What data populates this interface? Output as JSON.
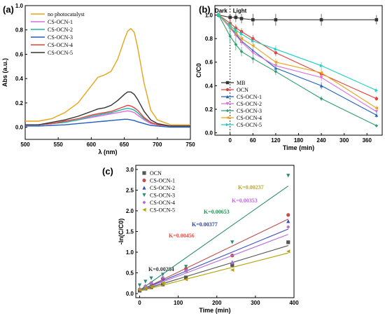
{
  "chart_data": [
    {
      "panel_label": "(a)",
      "type": "line",
      "xlabel": "λ (nm)",
      "ylabel": "Abs (a.u.)",
      "xlim": [
        500,
        750
      ],
      "ylim": [
        -0.1,
        1.0
      ],
      "xticks": [
        500,
        550,
        600,
        650,
        700,
        750
      ],
      "yticks": [
        0.0,
        0.2,
        0.4,
        0.6,
        0.8,
        1.0
      ],
      "legend_position": "top-left",
      "x": [
        500,
        520,
        540,
        560,
        580,
        600,
        610,
        620,
        630,
        640,
        650,
        655,
        660,
        665,
        670,
        680,
        690,
        700,
        720,
        750
      ],
      "series": [
        {
          "name": "no photocatalyst",
          "color": "#e8a317",
          "values": [
            0.05,
            0.05,
            0.07,
            0.12,
            0.2,
            0.34,
            0.41,
            0.43,
            0.46,
            0.56,
            0.72,
            0.79,
            0.81,
            0.78,
            0.66,
            0.36,
            0.14,
            0.06,
            0.02,
            0.02
          ]
        },
        {
          "name": "CS-OCN-1",
          "color": "#d86fd8",
          "values": [
            0.02,
            0.02,
            0.03,
            0.04,
            0.06,
            0.08,
            0.09,
            0.1,
            0.11,
            0.12,
            0.13,
            0.135,
            0.13,
            0.12,
            0.1,
            0.06,
            0.03,
            0.02,
            0.01,
            0.01
          ]
        },
        {
          "name": "CS-OCN-2",
          "color": "#20b2aa",
          "values": [
            0.02,
            0.02,
            0.03,
            0.04,
            0.06,
            0.09,
            0.1,
            0.11,
            0.12,
            0.135,
            0.15,
            0.155,
            0.15,
            0.14,
            0.12,
            0.07,
            0.04,
            0.02,
            0.01,
            0.01
          ]
        },
        {
          "name": "CS-OCN-3",
          "color": "#1f5fbf",
          "values": [
            0.01,
            0.01,
            0.015,
            0.02,
            0.03,
            0.04,
            0.045,
            0.05,
            0.055,
            0.06,
            0.065,
            0.065,
            0.06,
            0.055,
            0.045,
            0.03,
            0.015,
            0.01,
            0.0,
            0.0
          ]
        },
        {
          "name": "CS-OCN-4",
          "color": "#e2403a",
          "values": [
            0.02,
            0.02,
            0.03,
            0.05,
            0.07,
            0.1,
            0.11,
            0.12,
            0.13,
            0.15,
            0.17,
            0.18,
            0.175,
            0.16,
            0.14,
            0.08,
            0.04,
            0.02,
            0.01,
            0.01
          ]
        },
        {
          "name": "CS-OCN-5",
          "color": "#333333",
          "values": [
            0.02,
            0.02,
            0.04,
            0.06,
            0.09,
            0.13,
            0.15,
            0.16,
            0.18,
            0.22,
            0.27,
            0.29,
            0.29,
            0.27,
            0.23,
            0.13,
            0.06,
            0.03,
            0.01,
            0.01
          ]
        }
      ]
    },
    {
      "panel_label": "(b)",
      "type": "line",
      "xlabel": "Time (min)",
      "ylabel": "C/C0",
      "xlim": [
        -40,
        400
      ],
      "ylim": [
        -0.02,
        1.08
      ],
      "xticks": [
        0,
        60,
        120,
        180,
        240,
        300,
        360
      ],
      "yticks": [
        0.0,
        0.2,
        0.4,
        0.6,
        0.8,
        1.0
      ],
      "legend_position": "bottom-left",
      "annotations": [
        "Dark",
        "Light"
      ],
      "x": [
        -30,
        0,
        15,
        30,
        60,
        120,
        240,
        385
      ],
      "series": [
        {
          "name": "MB",
          "color": "#333333",
          "marker": "square",
          "values": [
            1.0,
            0.98,
            0.98,
            0.97,
            0.96,
            0.96,
            0.96,
            0.96
          ],
          "errors": [
            0.02,
            0.03,
            0.04,
            0.04,
            0.05,
            0.05,
            0.05,
            0.04
          ]
        },
        {
          "name": "OCN",
          "color": "#e2403a",
          "marker": "circle",
          "values": [
            1.0,
            0.93,
            0.89,
            0.86,
            0.8,
            0.68,
            0.5,
            0.29
          ],
          "errors": [
            0.02,
            0.03,
            0.03,
            0.03,
            0.03,
            0.03,
            0.03,
            0.02
          ]
        },
        {
          "name": "CS-OCN-1",
          "color": "#1f5fbf",
          "marker": "triangle",
          "values": [
            1.0,
            0.9,
            0.84,
            0.78,
            0.7,
            0.55,
            0.4,
            0.15
          ],
          "errors": [
            0.02,
            0.03,
            0.03,
            0.03,
            0.03,
            0.03,
            0.03,
            0.02
          ]
        },
        {
          "name": "CS-OCN-2",
          "color": "#d86fd8",
          "marker": "triangle-down",
          "values": [
            1.0,
            0.89,
            0.83,
            0.77,
            0.68,
            0.57,
            0.47,
            0.18
          ],
          "errors": [
            0.02,
            0.03,
            0.03,
            0.03,
            0.03,
            0.03,
            0.03,
            0.02
          ]
        },
        {
          "name": "CS-OCN-3",
          "color": "#2e9e6e",
          "marker": "diamond",
          "values": [
            1.0,
            0.82,
            0.75,
            0.69,
            0.63,
            0.52,
            0.29,
            0.06
          ],
          "errors": [
            0.02,
            0.06,
            0.05,
            0.04,
            0.04,
            0.03,
            0.02,
            0.01
          ]
        },
        {
          "name": "CS-OCN-4",
          "color": "#e8a317",
          "marker": "triangle-left",
          "values": [
            1.0,
            0.9,
            0.85,
            0.8,
            0.74,
            0.6,
            0.51,
            0.21
          ],
          "errors": [
            0.02,
            0.03,
            0.03,
            0.03,
            0.03,
            0.03,
            0.03,
            0.02
          ]
        },
        {
          "name": "CS-OCN-5",
          "color": "#17d2c8",
          "marker": "triangle-right",
          "values": [
            1.0,
            0.91,
            0.87,
            0.84,
            0.78,
            0.71,
            0.57,
            0.36
          ],
          "errors": [
            0.02,
            0.03,
            0.03,
            0.03,
            0.03,
            0.03,
            0.03,
            0.02
          ]
        }
      ]
    },
    {
      "panel_label": "(c)",
      "type": "scatter",
      "xlabel": "Time (min)",
      "ylabel": "-ln(C/C0)",
      "xlim": [
        -10,
        400
      ],
      "ylim": [
        -0.1,
        3.1
      ],
      "xticks": [
        0,
        100,
        200,
        300,
        400
      ],
      "yticks": [
        0.0,
        0.5,
        1.0,
        1.5,
        2.0,
        2.5,
        3.0
      ],
      "legend_position": "top-left",
      "x": [
        0,
        15,
        30,
        60,
        120,
        240,
        385
      ],
      "series": [
        {
          "name": "OCN",
          "color": "#555555",
          "marker": "square",
          "values": [
            0.07,
            0.12,
            0.15,
            0.22,
            0.39,
            0.69,
            1.24
          ],
          "k_label": "K=0.00284",
          "label_color": "#333333",
          "fit": [
            0.07,
            1.16
          ]
        },
        {
          "name": "CS-OCN-1",
          "color": "#c0504d",
          "marker": "circle",
          "values": [
            0.1,
            0.17,
            0.25,
            0.36,
            0.6,
            0.92,
            1.9
          ],
          "k_label": "K=0.00456",
          "label_color": "#d9534f",
          "fit": [
            0.07,
            1.8
          ]
        },
        {
          "name": "CS-OCN-2",
          "color": "#3b4cc0",
          "marker": "triangle",
          "values": [
            0.12,
            0.19,
            0.26,
            0.39,
            0.56,
            0.76,
            1.75
          ],
          "k_label": "K=0.00377",
          "label_color": "#1f3fbf",
          "fit": [
            0.08,
            1.56
          ]
        },
        {
          "name": "CS-OCN-3",
          "color": "#2e8b72",
          "marker": "triangle-down",
          "values": [
            0.2,
            0.29,
            0.37,
            0.46,
            0.65,
            1.24,
            2.85
          ],
          "k_label": "K=0.00653",
          "label_color": "#2e8b57",
          "fit": [
            0.08,
            2.6
          ]
        },
        {
          "name": "CS-OCN-4",
          "color": "#b36fd8",
          "marker": "diamond",
          "values": [
            0.11,
            0.18,
            0.25,
            0.39,
            0.55,
            0.74,
            1.61
          ],
          "k_label": "K=0.00353",
          "label_color": "#b36fd8",
          "fit": [
            0.07,
            1.43
          ]
        },
        {
          "name": "CS-OCN-5",
          "color": "#b5a000",
          "marker": "triangle-left",
          "values": [
            0.09,
            0.14,
            0.17,
            0.25,
            0.34,
            0.57,
            1.02
          ],
          "k_label": "K=0.00237",
          "label_color": "#c8a800",
          "fit": [
            0.06,
            0.98
          ]
        }
      ]
    }
  ]
}
